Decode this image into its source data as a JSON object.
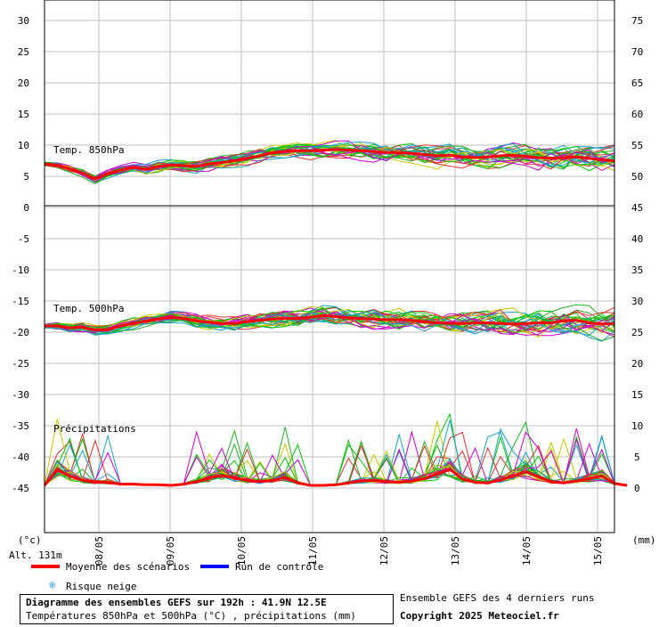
{
  "chart_data": {
    "type": "line",
    "panels": [
      {
        "label": "Temp. 850hPa",
        "left_ticks": [
          "30",
          "25",
          "20",
          "15",
          "10",
          "5",
          "0"
        ],
        "right_ticks": [
          "75",
          "70",
          "65",
          "60",
          "55",
          "50",
          "45"
        ],
        "mean": [
          7,
          6.8,
          6.2,
          5.5,
          4.6,
          5.4,
          6.0,
          6.4,
          6.1,
          6.6,
          6.8,
          6.7,
          6.6,
          7.0,
          7.2,
          7.5,
          7.9,
          8.3,
          8.8,
          9.0,
          9.1,
          9.1,
          9.2,
          9.3,
          9.2,
          9.1,
          9.0,
          8.8,
          8.8,
          8.7,
          8.5,
          8.3,
          8.4,
          8.1,
          8.0,
          8.1,
          8.3,
          8.4,
          8.2,
          8.0,
          7.9,
          8.0,
          8.1,
          7.9,
          7.6,
          7.5
        ]
      },
      {
        "label": "Temp. 500hPa",
        "left_ticks": [
          "-5",
          "-10",
          "-15",
          "-20",
          "-25",
          "-30",
          "-35",
          "-40",
          "-45"
        ],
        "right_ticks": [
          "40",
          "35",
          "30",
          "25",
          "20",
          "15",
          "10",
          "5",
          "0"
        ],
        "mean": [
          -19.0,
          -19.0,
          -19.3,
          -19.2,
          -19.7,
          -19.6,
          -19.0,
          -18.6,
          -18.2,
          -17.9,
          -17.6,
          -17.8,
          -18.2,
          -18.4,
          -18.6,
          -18.6,
          -18.3,
          -18.1,
          -17.9,
          -17.8,
          -17.8,
          -17.6,
          -17.3,
          -17.5,
          -17.7,
          -17.8,
          -17.9,
          -18.0,
          -18.0,
          -18.1,
          -18.3,
          -18.5,
          -18.6,
          -18.6,
          -18.5,
          -18.5,
          -18.6,
          -18.7,
          -18.6,
          -18.5,
          -18.5,
          -18.2,
          -18.1,
          -18.5,
          -18.7,
          -18.6
        ]
      },
      {
        "label": "Précipitations",
        "mean": [
          0,
          2.5,
          1.5,
          0.8,
          0.5,
          0.5,
          0.2,
          0.2,
          0.1,
          0.1,
          0,
          0.2,
          0.6,
          1.2,
          1.6,
          1.2,
          0.8,
          0.6,
          0.8,
          1.3,
          0.4,
          0,
          0,
          0.1,
          0.4,
          0.7,
          0.8,
          0.6,
          0.5,
          0.7,
          1.1,
          1.8,
          2.6,
          1.0,
          0.5,
          0.4,
          0.9,
          1.5,
          2.2,
          1.4,
          0.6,
          0.4,
          0.7,
          1.1,
          1.5,
          0.3,
          0
        ]
      }
    ],
    "x_labels": [
      "08/05",
      "09/05",
      "10/05",
      "11/05",
      "12/05",
      "13/05",
      "14/05",
      "15/05"
    ],
    "left_unit": "(°c)",
    "right_unit": "(mm)",
    "colors": {
      "mean": "#ff0000",
      "control": "#0000ff",
      "ensemble": [
        "#00c800",
        "#20b020",
        "#cc00cc",
        "#1aa0c8",
        "#c8c800",
        "#e03030"
      ],
      "grid": "#c0c0c0",
      "snow": "#40a0e0"
    }
  },
  "legend": {
    "mean_label": "Moyenne des scénarios",
    "control_label": "Run de contrôle",
    "snow_label": "Risque neige"
  },
  "altitude": "Alt. 131m",
  "title_line1": "Diagramme des ensembles GEFS sur 192h : 41.9N 12.5E",
  "title_line2": "Températures 850hPa et 500hPa (°C) , précipitations (mm)",
  "runs_note": "Ensemble GEFS des 4 derniers runs",
  "copyright": "Copyright 2025 Meteociel.fr"
}
